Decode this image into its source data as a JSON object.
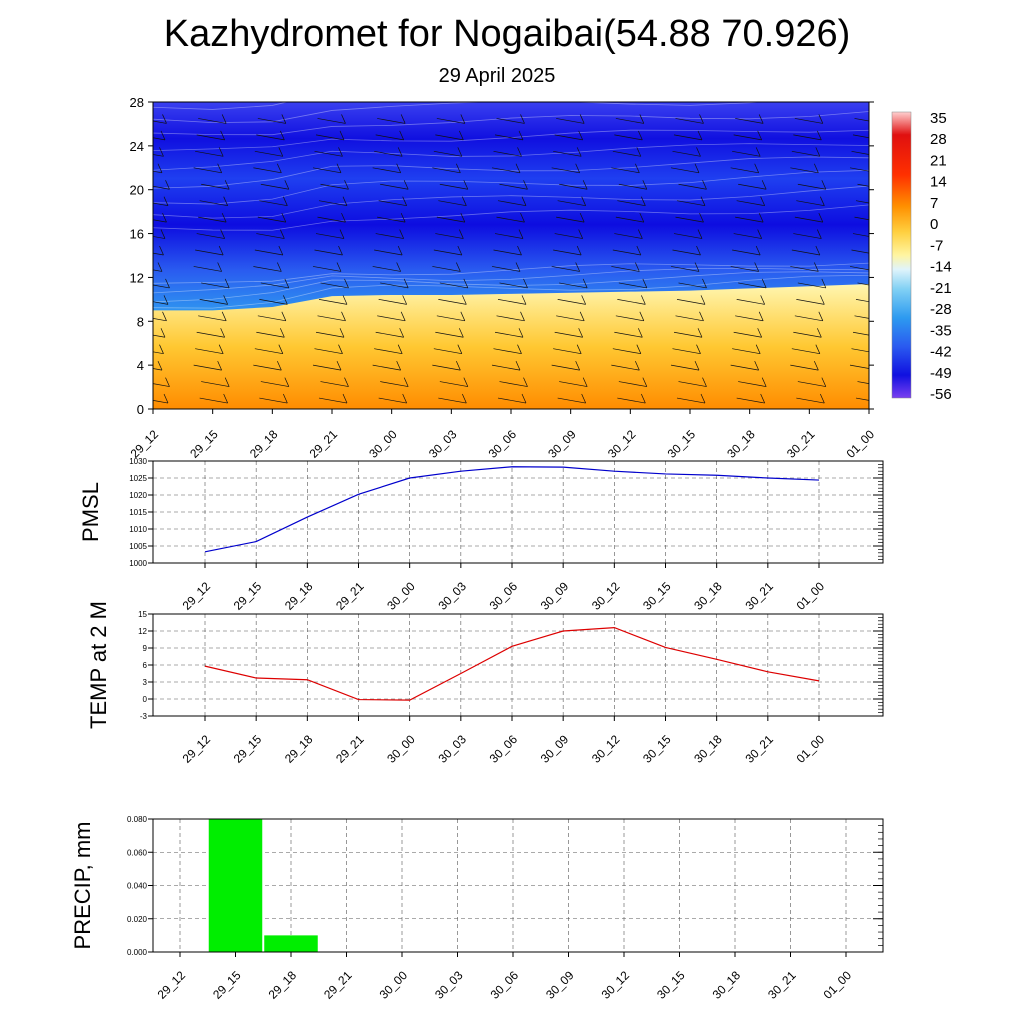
{
  "header": {
    "title": "Kazhydromet for Nogaibai(54.88 70.926)",
    "subtitle": "29 April 2025"
  },
  "time_labels": [
    "29_12",
    "29_15",
    "29_18",
    "29_21",
    "30_00",
    "30_03",
    "30_06",
    "30_09",
    "30_12",
    "30_15",
    "30_18",
    "30_21",
    "01_00"
  ],
  "chart_data": [
    {
      "type": "heatmap",
      "name": "temperature-cross-section",
      "title": "",
      "ylabel": "",
      "ylim": [
        0,
        28
      ],
      "yticks": [
        0,
        4,
        8,
        12,
        16,
        20,
        24,
        28
      ],
      "colorbar_labels": [
        "35",
        "28",
        "21",
        "14",
        "7",
        "0",
        "-7",
        "-14",
        "-21",
        "-28",
        "-35",
        "-42",
        "-49",
        "-56"
      ],
      "colors": {
        "warm_bottom": "#ff8c00",
        "warm_mid": "#ffd24a",
        "warm_top": "#fff5a8",
        "cold_light": "#8fd4f2",
        "cold_mid": "#2f9cf0",
        "cold_deep": "#1f2ff0",
        "cold_core": "#0d0de0"
      },
      "freezing_level": [
        9.0,
        9.0,
        9.3,
        10.3,
        10.4,
        10.4,
        10.5,
        10.6,
        10.7,
        10.8,
        11.0,
        11.2,
        11.4
      ]
    },
    {
      "type": "line",
      "name": "pmsl",
      "ylabel": "PMSL",
      "ylim": [
        1000,
        1030
      ],
      "yticks": [
        "1000",
        "1005",
        "1010",
        "1015",
        "1020",
        "1025",
        "1030"
      ],
      "x": [
        "29_12",
        "29_15",
        "29_18",
        "29_21",
        "30_00",
        "30_03",
        "30_06",
        "30_09",
        "30_12",
        "30_15",
        "30_18",
        "30_21",
        "01_00"
      ],
      "values": [
        1003.3,
        1006.3,
        1013.5,
        1020.2,
        1025.0,
        1027.0,
        1028.3,
        1028.2,
        1027.0,
        1026.2,
        1025.8,
        1025.0,
        1024.4
      ],
      "color": "#0000cc"
    },
    {
      "type": "line",
      "name": "temp-2m",
      "ylabel": "TEMP at 2 M",
      "ylim": [
        -3,
        15
      ],
      "yticks": [
        "-3",
        "0",
        "3",
        "6",
        "9",
        "12",
        "15"
      ],
      "x": [
        "29_12",
        "29_15",
        "29_18",
        "29_21",
        "30_00",
        "30_03",
        "30_06",
        "30_09",
        "30_12",
        "30_15",
        "30_18",
        "30_21",
        "01_00"
      ],
      "values": [
        5.8,
        3.7,
        3.4,
        -0.1,
        -0.2,
        4.5,
        9.3,
        12.0,
        12.6,
        9.1,
        7.0,
        4.8,
        3.2
      ],
      "color": "#dd0000"
    },
    {
      "type": "bar",
      "name": "precip",
      "ylabel": "PRECIP, mm",
      "ylim": [
        0,
        0.08
      ],
      "yticks": [
        "0.000",
        "0.020",
        "0.040",
        "0.060",
        "0.080"
      ],
      "categories": [
        "29_12",
        "29_15",
        "29_18",
        "29_21",
        "30_00",
        "30_03",
        "30_06",
        "30_09",
        "30_12",
        "30_15",
        "30_18",
        "30_21",
        "01_00"
      ],
      "values": [
        0,
        0.08,
        0.01,
        0,
        0,
        0,
        0,
        0,
        0,
        0,
        0,
        0,
        0
      ],
      "color": "#00ee00"
    }
  ]
}
